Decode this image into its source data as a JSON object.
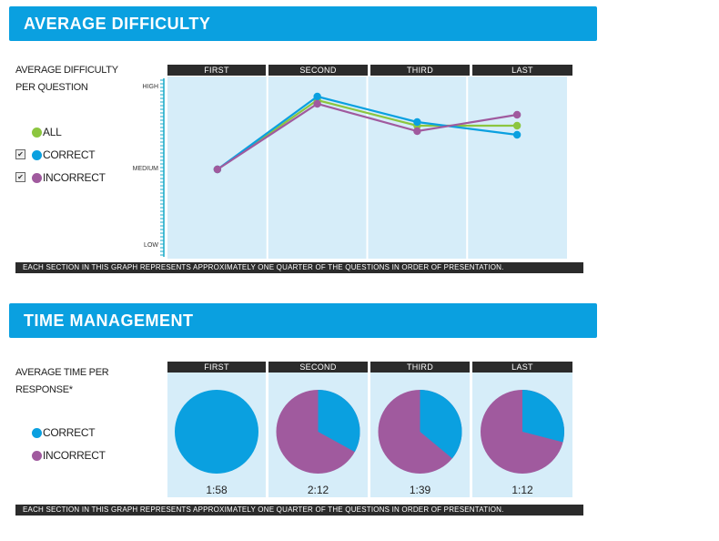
{
  "colors": {
    "header_blue": "#0aa0e0",
    "all": "#8cc63f",
    "correct": "#0aa0e0",
    "incorrect": "#a05a9e",
    "panel": "#d6edf9",
    "bar": "#2b2b2b"
  },
  "difficulty": {
    "title": "AVERAGE DIFFICULTY",
    "side_label_line1": "AVERAGE DIFFICULTY",
    "side_label_line2": "PER QUESTION",
    "legend": [
      {
        "label": "ALL",
        "color": "#8cc63f",
        "checkbox": false
      },
      {
        "label": "CORRECT",
        "color": "#0aa0e0",
        "checkbox": true
      },
      {
        "label": "INCORRECT",
        "color": "#a05a9e",
        "checkbox": true
      }
    ],
    "columns": [
      "FIRST",
      "SECOND",
      "THIRD",
      "LAST"
    ],
    "footer": "EACH SECTION IN THIS GRAPH REPRESENTS APPROXIMATELY ONE QUARTER OF THE QUESTIONS IN ORDER OF PRESENTATION."
  },
  "time": {
    "title": "TIME MANAGEMENT",
    "side_label_line1": "AVERAGE TIME PER",
    "side_label_line2": "RESPONSE*",
    "legend": [
      {
        "label": "CORRECT",
        "color": "#0aa0e0"
      },
      {
        "label": "INCORRECT",
        "color": "#a05a9e"
      }
    ],
    "columns": [
      "FIRST",
      "SECOND",
      "THIRD",
      "LAST"
    ],
    "footer": "EACH SECTION IN THIS GRAPH REPRESENTS APPROXIMATELY ONE QUARTER OF THE QUESTIONS IN ORDER OF PRESENTATION."
  },
  "chart_data": [
    {
      "type": "line",
      "title": "",
      "categories": [
        "FIRST",
        "SECOND",
        "THIRD",
        "LAST"
      ],
      "y_tick_labels": [
        "HIGH",
        "MEDIUM",
        "LOW"
      ],
      "ylim": [
        0,
        1
      ],
      "y_ticks": [
        0.95,
        0.5,
        0.08
      ],
      "series": [
        {
          "name": "ALL",
          "color": "#8cc63f",
          "values": [
            0.49,
            0.87,
            0.73,
            0.73
          ]
        },
        {
          "name": "CORRECT",
          "color": "#0aa0e0",
          "values": [
            0.49,
            0.89,
            0.75,
            0.68
          ]
        },
        {
          "name": "INCORRECT",
          "color": "#a05a9e",
          "values": [
            0.49,
            0.85,
            0.7,
            0.79
          ]
        }
      ],
      "grid": false
    },
    {
      "type": "pie",
      "title": "",
      "categories": [
        "FIRST",
        "SECOND",
        "THIRD",
        "LAST"
      ],
      "series_names": [
        "CORRECT",
        "INCORRECT"
      ],
      "correct_fraction": [
        1.0,
        0.33,
        0.36,
        0.29
      ],
      "times": [
        "1:58",
        "2:12",
        "1:39",
        "1:12"
      ]
    }
  ]
}
